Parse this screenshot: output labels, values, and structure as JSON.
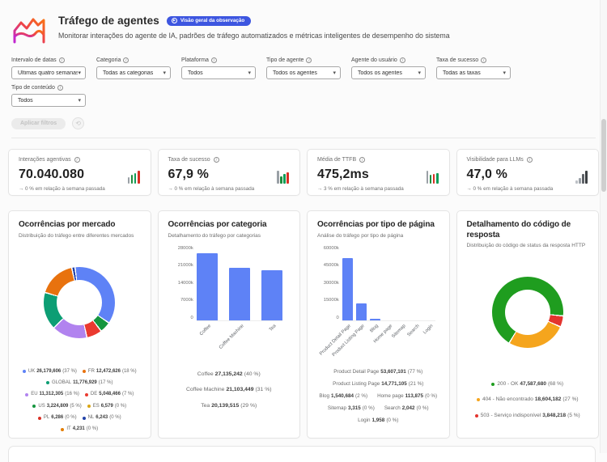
{
  "colors": {
    "accent": "#3d56e0",
    "bar_blue": "#5e82f6"
  },
  "header": {
    "title": "Tráfego de agentes",
    "badge_label": "Visão geral da observação",
    "subtitle": "Monitorar interações do agente de IA, padrões de tráfego automatizados e métricas inteligentes de desempenho do sistema"
  },
  "filters": {
    "apply_label": "Aplicar filtros",
    "fields": [
      {
        "label": "Intervalo de datas",
        "value": "Últimas quatro semanas"
      },
      {
        "label": "Categoria",
        "value": "Todas as categorias"
      },
      {
        "label": "Plataforma",
        "value": "Todos"
      },
      {
        "label": "Tipo de agente",
        "value": "Todos os agentes"
      },
      {
        "label": "Agente do usuário",
        "value": "Todos os agentes"
      },
      {
        "label": "Taxa de sucesso",
        "value": "Todas as taxas"
      },
      {
        "label": "Tipo de conteúdo",
        "value": "Todos"
      }
    ]
  },
  "kpis": [
    {
      "label": "Interações agentivas",
      "value": "70.040.080",
      "delta": "→ 0 % em relação à semana passada",
      "icon_bars": [
        {
          "h": 8,
          "c": "#9aa0a6"
        },
        {
          "h": 11,
          "c": "#1e8e3e"
        },
        {
          "h": 13,
          "c": "#0f9d58"
        },
        {
          "h": 16,
          "c": "#d93025"
        }
      ]
    },
    {
      "label": "Taxa de sucesso",
      "value": "67,9 %",
      "delta": "→ 0 % em relação à semana passada",
      "icon_bars": [
        {
          "h": 16,
          "c": "#9aa0a6"
        },
        {
          "h": 9,
          "c": "#1e8e3e"
        },
        {
          "h": 12,
          "c": "#0f9d58"
        },
        {
          "h": 14,
          "c": "#d93025"
        }
      ]
    },
    {
      "label": "Média de TTFB",
      "value": "475,2ms",
      "delta": "→ 3 % em relação à semana passada",
      "icon_bars": [
        {
          "h": 16,
          "c": "#9aa0a6"
        },
        {
          "h": 11,
          "c": "#1e8e3e"
        },
        {
          "h": 12,
          "c": "#d93025"
        },
        {
          "h": 13,
          "c": "#0f9d58"
        }
      ]
    },
    {
      "label": "Visibilidade para LLMs",
      "value": "47,0 %",
      "delta": "→ 0 % em relação à semana passada",
      "icon_bars": [
        {
          "h": 4,
          "c": "#bdc1c6"
        },
        {
          "h": 7,
          "c": "#9aa0a6"
        },
        {
          "h": 12,
          "c": "#5f6368"
        },
        {
          "h": 16,
          "c": "#3c4043"
        }
      ]
    }
  ],
  "chart_data": [
    {
      "type": "pie",
      "title": "Ocorrências por mercado",
      "subtitle": "Distribuição do tráfego entre diferentes mercados",
      "legend_position": "bottom",
      "items": [
        {
          "label": "UK",
          "value": "26,179,606",
          "pct": "(37 %)",
          "num": 26179606,
          "color": "#5e82f6"
        },
        {
          "label": "FR",
          "value": "12,472,626",
          "pct": "(18 %)",
          "num": 12472626,
          "color": "#e8720e"
        },
        {
          "label": "GLOBAL",
          "value": "11,776,929",
          "pct": "(17 %)",
          "num": 11776929,
          "color": "#0d9e74"
        },
        {
          "label": "EU",
          "value": "11,312,305",
          "pct": "(16 %)",
          "num": 11312305,
          "color": "#b183ef"
        },
        {
          "label": "DE",
          "value": "5,048,466",
          "pct": "(7 %)",
          "num": 5048466,
          "color": "#ea3a30"
        },
        {
          "label": "US",
          "value": "3,224,809",
          "pct": "(5 %)",
          "num": 3224809,
          "color": "#15953f"
        },
        {
          "label": "ES",
          "value": "6,579",
          "pct": "(0 %)",
          "num": 6579,
          "color": "#d9a514"
        },
        {
          "label": "PL",
          "value": "6,286",
          "pct": "(0 %)",
          "num": 6286,
          "color": "#d93025"
        },
        {
          "label": "NL",
          "value": "6,243",
          "pct": "(0 %)",
          "num": 6243,
          "color": "#2242a8"
        },
        {
          "label": "IT",
          "value": "4,231",
          "pct": "(0 %)",
          "num": 4231,
          "color": "#e37d00"
        }
      ],
      "donut": {
        "from_deg": -8,
        "segments": [
          {
            "color": "#5e82f6",
            "pct": 36.5
          },
          {
            "color": "#15953f",
            "pct": 5
          },
          {
            "color": "#ea3a30",
            "pct": 7
          },
          {
            "color": "#b183ef",
            "pct": 16
          },
          {
            "color": "#0d9e74",
            "pct": 17
          },
          {
            "color": "#e8720e",
            "pct": 17
          },
          {
            "color": "#2242a8",
            "pct": 1.5
          }
        ]
      }
    },
    {
      "type": "bar",
      "title": "Ocorrências por categoria",
      "subtitle": "Detalhamento do tráfego por categorias",
      "categories": [
        "Coffee",
        "Coffee Machine",
        "Tea"
      ],
      "values": [
        27135242,
        21103449,
        20139515
      ],
      "y_ticks": [
        "28000k",
        "21000k",
        "14000k",
        "7000k",
        "0"
      ],
      "y_max": 28000000,
      "bar_color": "#5e82f6",
      "items": [
        {
          "label": "Coffee",
          "value": "27,135,242",
          "pct": "(40 %)"
        },
        {
          "label": "Coffee Machine",
          "value": "21,103,449",
          "pct": "(31 %)"
        },
        {
          "label": "Tea",
          "value": "20,139,515",
          "pct": "(29 %)"
        }
      ]
    },
    {
      "type": "bar",
      "title": "Ocorrências por tipo de página",
      "subtitle": "Análise do tráfego por tipo de página",
      "categories": [
        "Product Detail Page",
        "Product Listing Page",
        "Blog",
        "Home page",
        "Sitemap",
        "Search",
        "Login"
      ],
      "values": [
        53607101,
        14771105,
        1540684,
        113875,
        3315,
        2042,
        1958
      ],
      "y_ticks": [
        "60000k",
        "45000k",
        "30000k",
        "15000k",
        "0"
      ],
      "y_max": 60000000,
      "bar_color": "#5e82f6",
      "items": [
        {
          "label": "Product Detail Page",
          "value": "53,607,101",
          "pct": "(77 %)"
        },
        {
          "label": "Product Listing Page",
          "value": "14,771,105",
          "pct": "(21 %)"
        },
        {
          "label": "Blog",
          "value": "1,540,684",
          "pct": "(2 %)"
        },
        {
          "label": "Home page",
          "value": "113,875",
          "pct": "(0 %)"
        },
        {
          "label": "Sitemap",
          "value": "3,315",
          "pct": "(0 %)"
        },
        {
          "label": "Search",
          "value": "2,042",
          "pct": "(0 %)"
        },
        {
          "label": "Login",
          "value": "1,958",
          "pct": "(0 %)"
        }
      ]
    },
    {
      "type": "pie",
      "title": "Detalhamento do código de resposta",
      "subtitle": "Distribuição do código de status da resposta HTTP",
      "items": [
        {
          "label": "200 - OK",
          "value": "47,587,680",
          "pct": "(68 %)",
          "num": 47587680,
          "color": "#1f9d1f"
        },
        {
          "label": "404 - Não encontrado",
          "value": "18,604,182",
          "pct": "(27 %)",
          "num": 18604182,
          "color": "#f5a51d"
        },
        {
          "label": "503 - Serviço indisponível",
          "value": "3,848,218",
          "pct": "(5 %)",
          "num": 3848218,
          "color": "#e3342e"
        }
      ],
      "donut": {
        "from_deg": 210,
        "segments": [
          {
            "color": "#1f9d1f",
            "pct": 68
          },
          {
            "color": "#e3342e",
            "pct": 5
          },
          {
            "color": "#f5a51d",
            "pct": 27
          }
        ]
      }
    }
  ]
}
